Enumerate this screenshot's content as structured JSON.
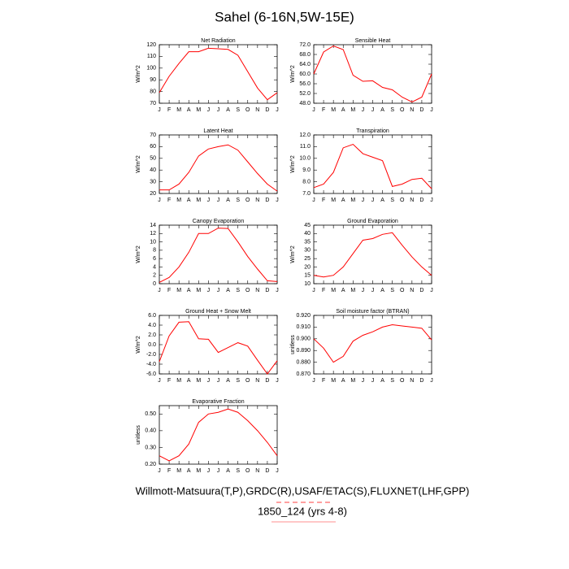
{
  "title": "Sahel (6-16N,5W-15E)",
  "chart_data": [
    {
      "type": "line",
      "title": "Net Radiation",
      "y_label": "W/m^2",
      "categories": [
        "J",
        "F",
        "M",
        "A",
        "M",
        "J",
        "J",
        "A",
        "S",
        "O",
        "N",
        "D",
        "J"
      ],
      "series": [
        {
          "color": "#ff0000",
          "values": [
            79,
            93,
            104,
            114,
            114,
            117,
            116.5,
            116,
            111,
            97,
            83,
            73,
            79
          ]
        }
      ],
      "ylim": [
        70,
        120
      ],
      "yticks": [
        70,
        80,
        90,
        100,
        110,
        120
      ]
    },
    {
      "type": "line",
      "title": "Sensible Heat",
      "y_label": "W/m^2",
      "categories": [
        "J",
        "F",
        "M",
        "A",
        "M",
        "J",
        "J",
        "A",
        "S",
        "O",
        "N",
        "D",
        "J"
      ],
      "series": [
        {
          "color": "#ff0000",
          "values": [
            60,
            69,
            71.5,
            70,
            59.5,
            57,
            57.2,
            54.5,
            53.5,
            50.5,
            48.5,
            50.5,
            60
          ]
        }
      ],
      "ylim": [
        48,
        72
      ],
      "yticks": [
        {
          "value": 48,
          "label": "48.0"
        },
        {
          "value": 52,
          "label": "52.0"
        },
        {
          "value": 56,
          "label": "56.0"
        },
        {
          "value": 60,
          "label": "60.0"
        },
        {
          "value": 64,
          "label": "64.0"
        },
        {
          "value": 68,
          "label": "68.0"
        },
        {
          "value": 72,
          "label": "72.0"
        }
      ]
    },
    {
      "type": "line",
      "title": "Latent Heat",
      "y_label": "W/m^2",
      "categories": [
        "J",
        "F",
        "M",
        "A",
        "M",
        "J",
        "J",
        "A",
        "S",
        "O",
        "N",
        "D",
        "J"
      ],
      "series": [
        {
          "color": "#ff0000",
          "values": [
            23,
            23,
            28,
            38,
            52,
            58,
            60,
            61.5,
            57,
            47,
            37,
            28,
            22
          ]
        }
      ],
      "ylim": [
        20,
        70
      ],
      "yticks": [
        20,
        30,
        40,
        50,
        60,
        70
      ]
    },
    {
      "type": "line",
      "title": "Transpiration",
      "y_label": "W/m^2",
      "categories": [
        "J",
        "F",
        "M",
        "A",
        "M",
        "J",
        "J",
        "A",
        "S",
        "O",
        "N",
        "D",
        "J"
      ],
      "series": [
        {
          "color": "#ff0000",
          "values": [
            7.5,
            7.8,
            8.8,
            10.9,
            11.2,
            10.4,
            10.1,
            9.8,
            7.6,
            7.8,
            8.2,
            8.3,
            7.4
          ]
        }
      ],
      "ylim": [
        7,
        12
      ],
      "yticks": [
        {
          "value": 7,
          "label": "7.0"
        },
        {
          "value": 8,
          "label": "8.0"
        },
        {
          "value": 9,
          "label": "9.0"
        },
        {
          "value": 10,
          "label": "10.0"
        },
        {
          "value": 11,
          "label": "11.0"
        },
        {
          "value": 12,
          "label": "12.0"
        }
      ]
    },
    {
      "type": "line",
      "title": "Canopy Evaporation",
      "y_label": "W/m^2",
      "categories": [
        "J",
        "F",
        "M",
        "A",
        "M",
        "J",
        "J",
        "A",
        "S",
        "O",
        "N",
        "D",
        "J"
      ],
      "series": [
        {
          "color": "#ff0000",
          "values": [
            0.3,
            1.5,
            4,
            7.5,
            12,
            12,
            13.3,
            13.2,
            10,
            6.5,
            3.5,
            0.7,
            0.5
          ]
        }
      ],
      "ylim": [
        0,
        14
      ],
      "yticks": [
        0,
        2,
        4,
        6,
        8,
        10,
        12,
        14
      ]
    },
    {
      "type": "line",
      "title": "Ground Evaporation",
      "y_label": "W/m^2",
      "categories": [
        "J",
        "F",
        "M",
        "A",
        "M",
        "J",
        "J",
        "A",
        "S",
        "O",
        "N",
        "D",
        "J"
      ],
      "series": [
        {
          "color": "#ff0000",
          "values": [
            15,
            14,
            15,
            20,
            28,
            36,
            37,
            39.5,
            40.5,
            33,
            26,
            20,
            15
          ]
        }
      ],
      "ylim": [
        10,
        45
      ],
      "yticks": [
        10,
        15,
        20,
        25,
        30,
        35,
        40,
        45
      ]
    },
    {
      "type": "line",
      "title": "Ground Heat + Snow Melt",
      "y_label": "W/m^2",
      "categories": [
        "J",
        "F",
        "M",
        "A",
        "M",
        "J",
        "J",
        "A",
        "S",
        "O",
        "N",
        "D",
        "J"
      ],
      "series": [
        {
          "color": "#ff0000",
          "values": [
            -3.5,
            1.8,
            4.6,
            4.7,
            1.2,
            1.1,
            -1.6,
            -0.6,
            0.4,
            -0.3,
            -3.2,
            -6,
            -3.3
          ]
        }
      ],
      "ylim": [
        -6,
        6
      ],
      "yticks": [
        {
          "value": -6,
          "label": "-6.0"
        },
        {
          "value": -4,
          "label": "-4.0"
        },
        {
          "value": -2,
          "label": "-2.0"
        },
        {
          "value": 0,
          "label": "0.0"
        },
        {
          "value": 2,
          "label": "2.0"
        },
        {
          "value": 4,
          "label": "4.0"
        },
        {
          "value": 6,
          "label": "6.0"
        }
      ]
    },
    {
      "type": "line",
      "title": "Soil moisture factor (BTRAN)",
      "y_label": "unitless",
      "categories": [
        "J",
        "F",
        "M",
        "A",
        "M",
        "J",
        "J",
        "A",
        "S",
        "O",
        "N",
        "D",
        "J"
      ],
      "series": [
        {
          "color": "#ff0000",
          "values": [
            0.9,
            0.892,
            0.88,
            0.885,
            0.898,
            0.903,
            0.906,
            0.91,
            0.912,
            0.911,
            0.91,
            0.909,
            0.899
          ]
        }
      ],
      "ylim": [
        0.87,
        0.92
      ],
      "yticks": [
        {
          "value": 0.87,
          "label": "0.870"
        },
        {
          "value": 0.88,
          "label": "0.880"
        },
        {
          "value": 0.89,
          "label": "0.890"
        },
        {
          "value": 0.9,
          "label": "0.900"
        },
        {
          "value": 0.91,
          "label": "0.910"
        },
        {
          "value": 0.92,
          "label": "0.920"
        }
      ]
    },
    {
      "type": "line",
      "title": "Evaporative Fraction",
      "y_label": "unitless",
      "categories": [
        "J",
        "F",
        "M",
        "A",
        "M",
        "J",
        "J",
        "A",
        "S",
        "O",
        "N",
        "D",
        "J"
      ],
      "series": [
        {
          "color": "#ff0000",
          "values": [
            0.25,
            0.22,
            0.25,
            0.32,
            0.45,
            0.5,
            0.51,
            0.53,
            0.51,
            0.46,
            0.4,
            0.33,
            0.25
          ]
        }
      ],
      "ylim": [
        0.2,
        0.55
      ],
      "yticks": [
        {
          "value": 0.2,
          "label": "0.20"
        },
        {
          "value": 0.3,
          "label": "0.30"
        },
        {
          "value": 0.4,
          "label": "0.40"
        },
        {
          "value": 0.5,
          "label": "0.50"
        }
      ]
    }
  ],
  "footer": {
    "sources": "Willmott-Matsuura(T,P),GRDC(R),USAF/ETAC(S),FLUXNET(LHF,GPP)",
    "case": "1850_124 (yrs 4-8)"
  }
}
